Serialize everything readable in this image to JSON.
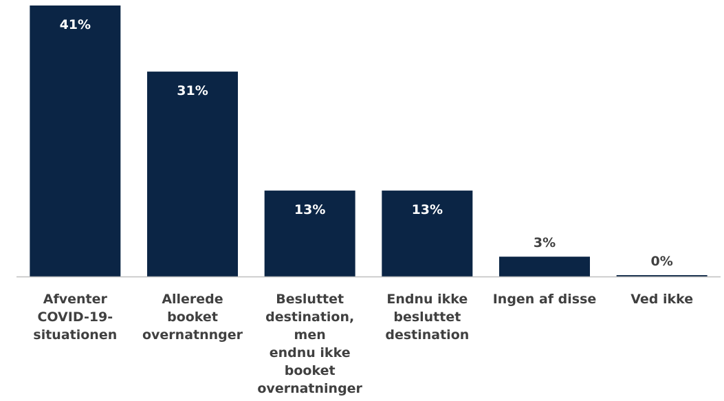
{
  "chart_data": {
    "type": "bar",
    "title": "",
    "xlabel": "",
    "ylabel": "",
    "ylim": [
      0,
      41
    ],
    "grid": false,
    "bar_color": "#0b2545",
    "axis_color": "#bfbfbf",
    "categories": [
      [
        "Afventer",
        "COVID-19-",
        "situationen"
      ],
      [
        "Allerede",
        "booket",
        "overnatnnger"
      ],
      [
        "Besluttet",
        "destination,",
        "men",
        "endnu ikke",
        "booket",
        "overnatninger"
      ],
      [
        "Endnu ikke",
        "besluttet",
        "destination"
      ],
      [
        "Ingen af disse"
      ],
      [
        "Ved ikke"
      ]
    ],
    "values": [
      41,
      31,
      13,
      13,
      3,
      0
    ],
    "data_labels": [
      "41%",
      "31%",
      "13%",
      "13%",
      "3%",
      "0%"
    ]
  }
}
